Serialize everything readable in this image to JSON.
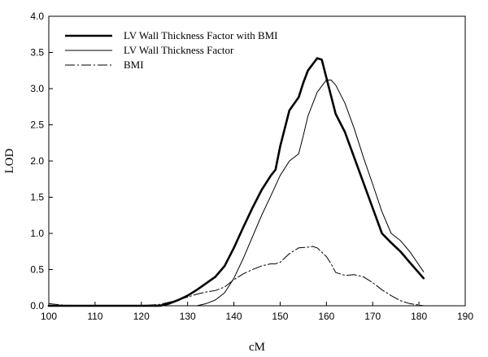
{
  "chart_data": {
    "type": "line",
    "title": "",
    "xlabel": "cM",
    "ylabel": "LOD",
    "xlim": [
      100,
      190
    ],
    "ylim": [
      0.0,
      4.0
    ],
    "xticks": [
      100,
      110,
      120,
      130,
      140,
      150,
      160,
      170,
      180,
      190
    ],
    "yticks": [
      0.0,
      0.5,
      1.0,
      1.5,
      2.0,
      2.5,
      3.0,
      3.5,
      4.0
    ],
    "ytick_labels": [
      "0.0",
      "0.5",
      "1.0",
      "1.5",
      "2.0",
      "2.5",
      "3.0",
      "3.5",
      "4.0"
    ],
    "grid": false,
    "legend": "top-left",
    "series": [
      {
        "name": "LV Wall Thickness Factor with BMI",
        "style": "solid-thick",
        "color": "#000000",
        "x": [
          100,
          105,
          110,
          120,
          124,
          126,
          128,
          130,
          132,
          134,
          136,
          138,
          140,
          142,
          144,
          146,
          148,
          149,
          150,
          152,
          154,
          155,
          156,
          158,
          159,
          160,
          162,
          164,
          166,
          168,
          170,
          172,
          174,
          176,
          178,
          181
        ],
        "y": [
          0.0,
          0.0,
          0.0,
          0.0,
          0.0,
          0.03,
          0.08,
          0.14,
          0.22,
          0.31,
          0.4,
          0.55,
          0.8,
          1.08,
          1.35,
          1.6,
          1.8,
          1.88,
          2.2,
          2.7,
          2.88,
          3.08,
          3.25,
          3.42,
          3.4,
          3.15,
          2.65,
          2.4,
          2.05,
          1.7,
          1.35,
          1.0,
          0.87,
          0.75,
          0.6,
          0.38
        ]
      },
      {
        "name": "LV Wall Thickness Factor",
        "style": "solid-thin",
        "color": "#000000",
        "x": [
          100,
          105,
          110,
          120,
          126,
          128,
          130,
          132,
          134,
          136,
          138,
          140,
          142,
          144,
          146,
          148,
          150,
          152,
          154,
          155,
          156,
          158,
          160,
          161,
          162,
          164,
          166,
          168,
          170,
          172,
          174,
          176,
          178,
          181
        ],
        "y": [
          0.0,
          0.0,
          0.0,
          0.0,
          0.0,
          0.0,
          0.0,
          0.0,
          0.03,
          0.08,
          0.18,
          0.38,
          0.65,
          0.95,
          1.25,
          1.52,
          1.8,
          2.0,
          2.1,
          2.35,
          2.62,
          2.95,
          3.12,
          3.12,
          3.05,
          2.8,
          2.45,
          2.05,
          1.68,
          1.3,
          1.0,
          0.9,
          0.75,
          0.47
        ]
      },
      {
        "name": "BMI",
        "style": "dash-dot",
        "color": "#000000",
        "x": [
          100,
          103,
          105,
          110,
          120,
          124,
          126,
          128,
          130,
          132,
          134,
          136,
          138,
          140,
          142,
          144,
          146,
          148,
          149,
          150,
          152,
          154,
          156,
          157,
          158,
          160,
          161,
          162,
          164,
          166,
          168,
          170,
          172,
          174,
          176,
          178,
          180,
          181
        ],
        "y": [
          0.03,
          0.01,
          0.0,
          0.0,
          0.0,
          0.02,
          0.05,
          0.08,
          0.12,
          0.16,
          0.19,
          0.21,
          0.26,
          0.36,
          0.44,
          0.5,
          0.55,
          0.58,
          0.58,
          0.6,
          0.72,
          0.8,
          0.81,
          0.82,
          0.8,
          0.68,
          0.58,
          0.46,
          0.42,
          0.43,
          0.4,
          0.32,
          0.22,
          0.14,
          0.07,
          0.03,
          0.01,
          0.0
        ]
      }
    ]
  }
}
